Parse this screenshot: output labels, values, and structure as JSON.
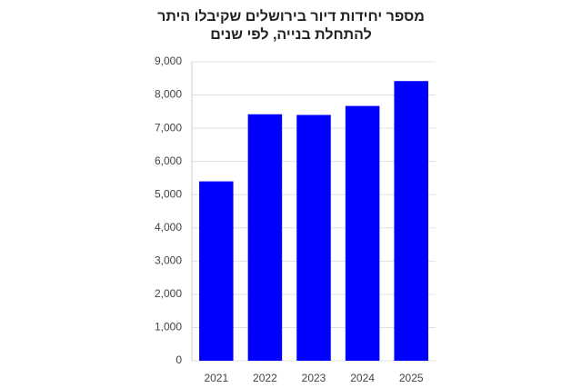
{
  "chart_data": {
    "type": "bar",
    "title": [
      "מספר יחידות דיור בירושלים שקיבלו היתר",
      "להתחלת בנייה, לפי שנים"
    ],
    "categories": [
      "2021",
      "2022",
      "2023",
      "2024",
      "2025"
    ],
    "values": [
      5400,
      7420,
      7400,
      7670,
      8420
    ],
    "color": "#0000ff",
    "ylim": [
      0,
      9000
    ],
    "yticks": [
      0,
      {
        "value": 1000,
        "label": "1,000"
      },
      {
        "value": 2000,
        "label": "2,000"
      },
      {
        "value": 3000,
        "label": "3,000"
      },
      {
        "value": 4000,
        "label": "4,000"
      },
      {
        "value": 5000,
        "label": "5,000"
      },
      {
        "value": 6000,
        "label": "6,000"
      },
      {
        "value": 7000,
        "label": "7,000"
      },
      {
        "value": 8000,
        "label": "8,000"
      },
      {
        "value": 9000,
        "label": "9,000"
      }
    ],
    "grid": true
  }
}
